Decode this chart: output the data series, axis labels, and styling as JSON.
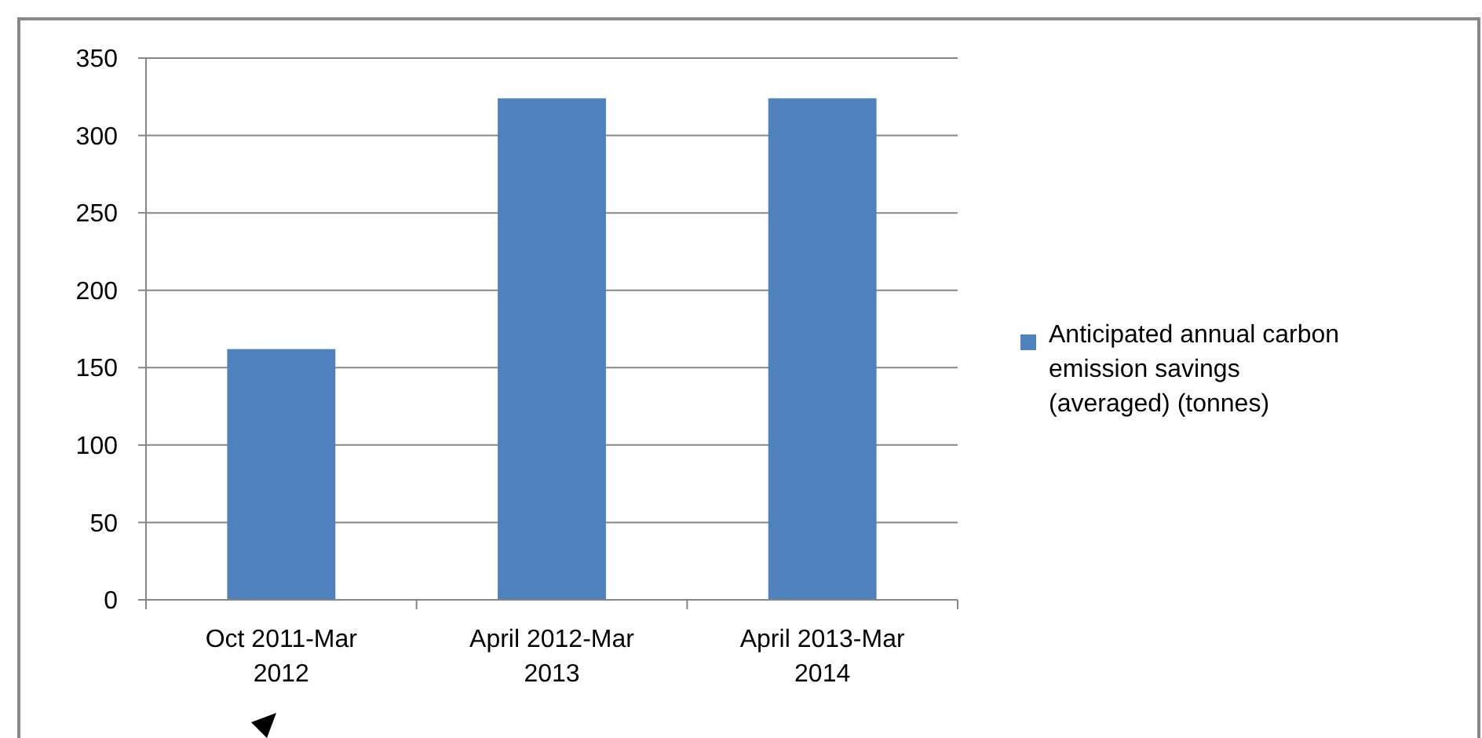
{
  "chart_data": {
    "type": "bar",
    "categories": [
      "Oct 2011-Mar 2012",
      "April 2012-Mar 2013",
      "April 2013-Mar 2014"
    ],
    "series": [
      {
        "name": "Anticipated annual carbon emission savings (averaged) (tonnes)",
        "color": "#4f81bd",
        "values": [
          162,
          324,
          324
        ]
      }
    ],
    "ylim": [
      0,
      350
    ],
    "yticks": [
      0,
      50,
      100,
      150,
      200,
      250,
      300,
      350
    ],
    "grid": "y",
    "legend": "right"
  }
}
